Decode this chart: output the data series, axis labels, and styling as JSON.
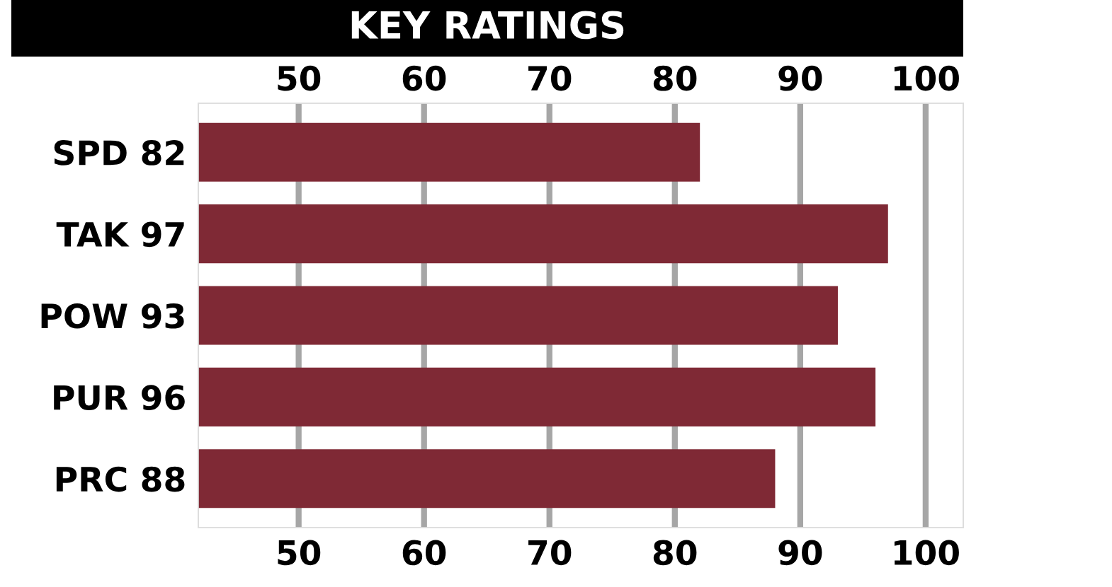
{
  "chart_data": {
    "type": "bar",
    "orientation": "horizontal",
    "title": "KEY RATINGS",
    "categories": [
      "SPD 82",
      "TAK 97",
      "POW 93",
      "PUR 96",
      "PRC 88"
    ],
    "values": [
      82,
      97,
      93,
      96,
      88
    ],
    "color": "#7f2935",
    "xlim": [
      42,
      103
    ],
    "xticks": [
      50,
      60,
      70,
      80,
      90,
      100
    ],
    "x2lim": [
      42,
      103
    ],
    "x2ticks": [
      50,
      60,
      70,
      80,
      90,
      100
    ],
    "grid": "x"
  }
}
